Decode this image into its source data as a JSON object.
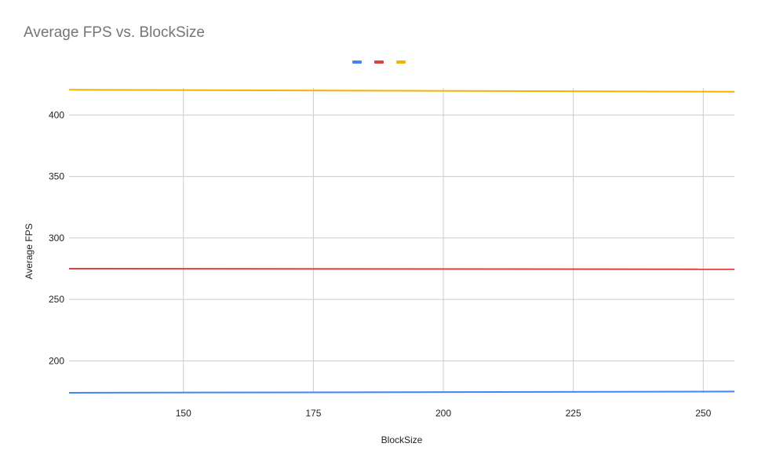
{
  "chart_data": {
    "type": "line",
    "title": "Average FPS vs. BlockSize",
    "xlabel": "BlockSize",
    "ylabel": "Average FPS",
    "xlim": [
      128,
      256
    ],
    "ylim": [
      174,
      422
    ],
    "x_ticks": [
      150,
      175,
      200,
      225,
      250
    ],
    "y_ticks": [
      200,
      250,
      300,
      350,
      400
    ],
    "grid": true,
    "legend_position": "top",
    "x": [
      128,
      256
    ],
    "series": [
      {
        "color": "#4285f4",
        "values": [
          174,
          175
        ]
      },
      {
        "color": "#db4437",
        "values": [
          275,
          274.5
        ]
      },
      {
        "color": "#f4b400",
        "values": [
          420.5,
          419
        ]
      }
    ]
  }
}
